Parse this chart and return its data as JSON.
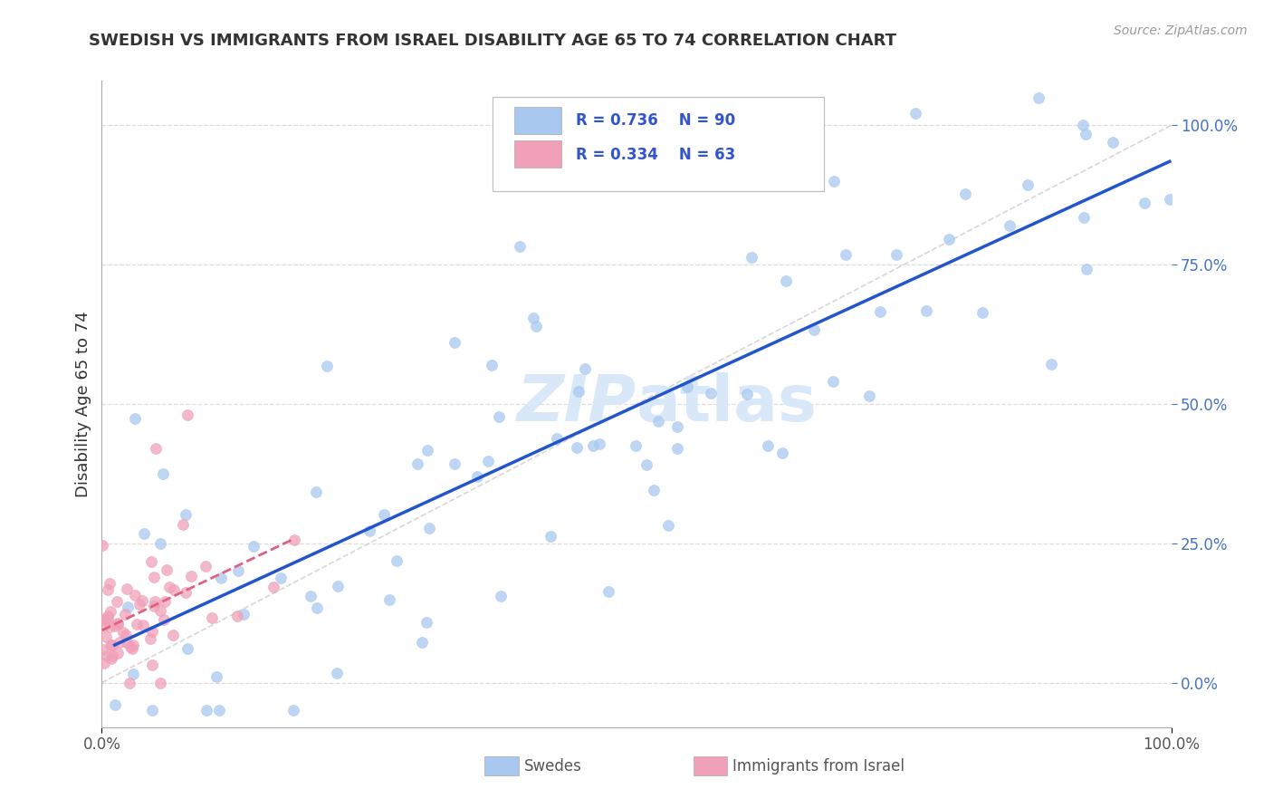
{
  "title": "SWEDISH VS IMMIGRANTS FROM ISRAEL DISABILITY AGE 65 TO 74 CORRELATION CHART",
  "source": "Source: ZipAtlas.com",
  "ylabel_left": "Disability Age 65 to 74",
  "xmin": 0.0,
  "xmax": 1.0,
  "ymin": -0.08,
  "ymax": 1.08,
  "ytick_values_right": [
    0.0,
    0.25,
    0.5,
    0.75,
    1.0
  ],
  "ytick_labels_right": [
    "0.0%",
    "25.0%",
    "50.0%",
    "75.0%",
    "100.0%"
  ],
  "legend_r1": "0.736",
  "legend_n1": "90",
  "legend_r2": "0.334",
  "legend_n2": "63",
  "legend_label1": "Swedes",
  "legend_label2": "Immigrants from Israel",
  "blue_color": "#A8C8F0",
  "pink_color": "#F0A0B8",
  "blue_line_color": "#2255CC",
  "pink_line_color": "#E06080",
  "ref_line_color": "#CCCCCC",
  "title_color": "#333333",
  "watermark_color": "#D8E8F8"
}
